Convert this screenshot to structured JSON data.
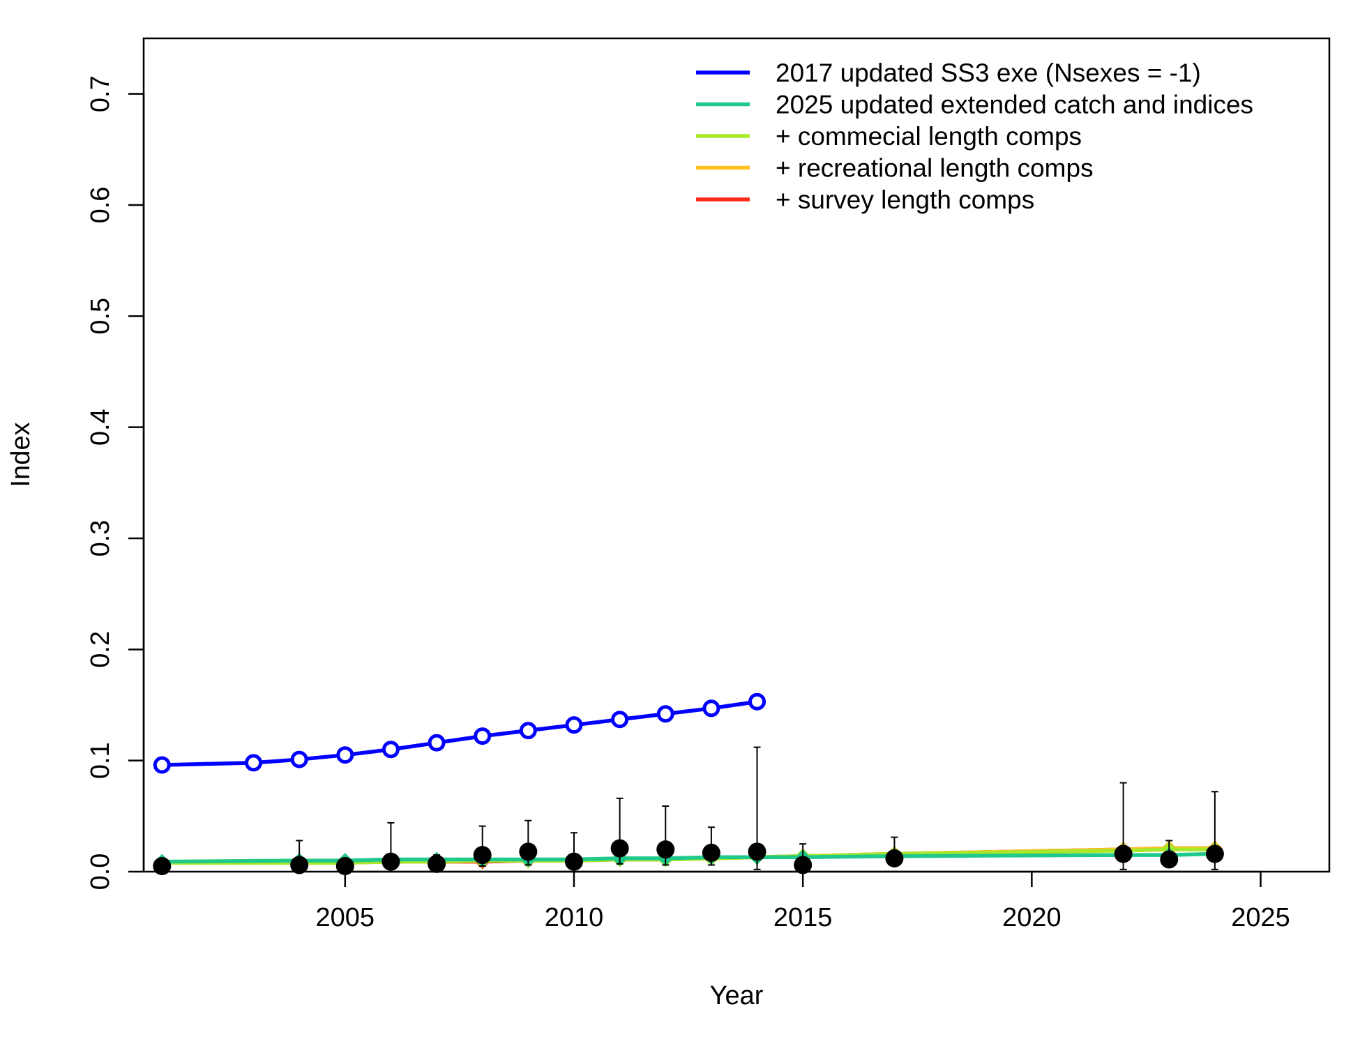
{
  "chart_data": {
    "type": "line",
    "title": "",
    "xlabel": "Year",
    "ylabel": "Index",
    "xlim": [
      2000.6,
      2026.5
    ],
    "ylim": [
      0,
      0.75
    ],
    "xticks": [
      2005,
      2010,
      2015,
      2020,
      2025
    ],
    "xtick_labels": [
      "2005",
      "2010",
      "2015",
      "2020",
      "2025"
    ],
    "yticks": [
      0.0,
      0.1,
      0.2,
      0.3,
      0.4,
      0.5,
      0.6,
      0.7
    ],
    "ytick_labels": [
      "0.0",
      "0.1",
      "0.2",
      "0.3",
      "0.4",
      "0.5",
      "0.6",
      "0.7"
    ],
    "grid": false,
    "legend_position": "top-right",
    "series": [
      {
        "name": "2017 updated SS3 exe (Nsexes = -1)",
        "color": "#0000ff",
        "marker": "open-circle",
        "x": [
          2001,
          2003,
          2004,
          2005,
          2006,
          2007,
          2008,
          2009,
          2010,
          2011,
          2012,
          2013,
          2014
        ],
        "y": [
          0.096,
          0.098,
          0.101,
          0.105,
          0.11,
          0.116,
          0.122,
          0.127,
          0.132,
          0.137,
          0.142,
          0.147,
          0.153
        ]
      },
      {
        "name": "2025 updated extended catch and indices",
        "color": "#1fc98a",
        "marker": "diamond",
        "x": [
          2001,
          2004,
          2005,
          2006,
          2007,
          2008,
          2009,
          2010,
          2011,
          2012,
          2013,
          2014,
          2015,
          2017,
          2022,
          2023,
          2024
        ],
        "y": [
          0.009,
          0.01,
          0.01,
          0.011,
          0.011,
          0.011,
          0.011,
          0.011,
          0.012,
          0.012,
          0.013,
          0.013,
          0.013,
          0.014,
          0.015,
          0.015,
          0.016
        ]
      },
      {
        "name": "+ commecial length comps",
        "color": "#a8e82a",
        "marker": "diamond",
        "x": [
          2001,
          2004,
          2005,
          2006,
          2007,
          2008,
          2009,
          2010,
          2011,
          2012,
          2013,
          2014,
          2015,
          2017,
          2022,
          2023,
          2024
        ],
        "y": [
          0.008,
          0.008,
          0.008,
          0.009,
          0.009,
          0.01,
          0.01,
          0.01,
          0.011,
          0.011,
          0.012,
          0.013,
          0.014,
          0.016,
          0.019,
          0.02,
          0.02
        ]
      },
      {
        "name": "+ recreational length comps",
        "color": "#ffbf1f",
        "marker": "diamond",
        "x": [
          2001,
          2004,
          2005,
          2006,
          2007,
          2008,
          2009,
          2010,
          2011,
          2012,
          2013,
          2014,
          2015,
          2017,
          2022,
          2023,
          2024
        ],
        "y": [
          0.008,
          0.008,
          0.008,
          0.009,
          0.009,
          0.01,
          0.01,
          0.01,
          0.011,
          0.011,
          0.012,
          0.013,
          0.014,
          0.016,
          0.02,
          0.021,
          0.021
        ]
      },
      {
        "name": "+ survey length comps",
        "color": "#ff2a1a",
        "marker": "diamond",
        "x": [
          2001,
          2004,
          2005,
          2006,
          2007,
          2008,
          2009,
          2010,
          2011,
          2012,
          2013,
          2014,
          2015,
          2017,
          2022,
          2023,
          2024
        ],
        "y": [
          0.008,
          0.008,
          0.008,
          0.009,
          0.009,
          0.009,
          0.01,
          0.01,
          0.011,
          0.011,
          0.012,
          0.013,
          0.014,
          0.016,
          0.02,
          0.021,
          0.021
        ]
      }
    ],
    "observed": {
      "color": "#000000",
      "marker": "filled-circle",
      "x": [
        2001,
        2004,
        2005,
        2006,
        2007,
        2008,
        2009,
        2010,
        2011,
        2012,
        2013,
        2014,
        2015,
        2017,
        2022,
        2023,
        2024
      ],
      "y": [
        0.005,
        0.006,
        0.005,
        0.009,
        0.007,
        0.015,
        0.018,
        0.009,
        0.021,
        0.02,
        0.017,
        0.018,
        0.006,
        0.012,
        0.016,
        0.011,
        0.016
      ],
      "lower": [
        0.001,
        0.002,
        0.001,
        0.002,
        0.001,
        0.005,
        0.006,
        0.002,
        0.007,
        0.006,
        0.006,
        0.002,
        0.001,
        0.007,
        0.002,
        0.004,
        0.002
      ],
      "upper": [
        0.008,
        0.028,
        0.01,
        0.044,
        0.015,
        0.041,
        0.046,
        0.035,
        0.066,
        0.059,
        0.04,
        0.112,
        0.025,
        0.031,
        0.08,
        0.028,
        0.072
      ]
    }
  }
}
